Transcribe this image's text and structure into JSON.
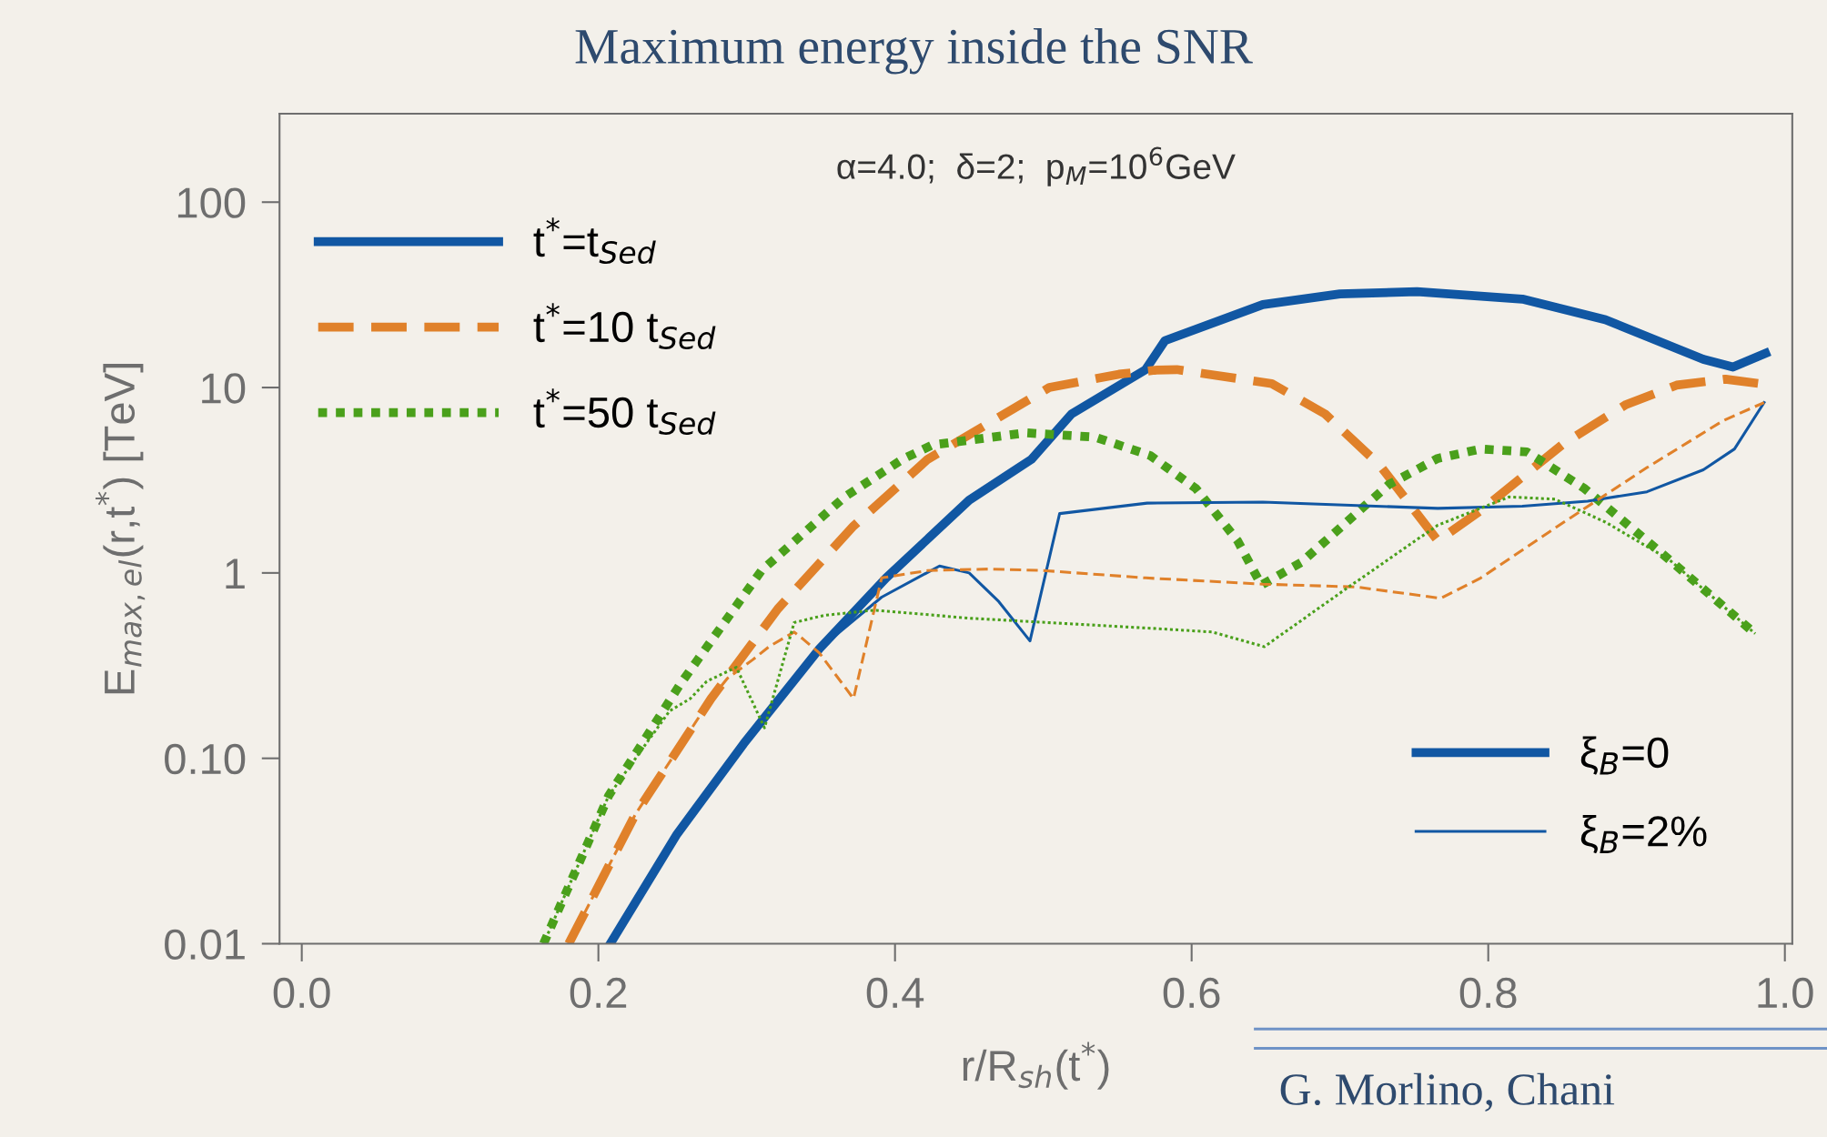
{
  "chart_data": {
    "type": "line",
    "title": "Maximum energy inside the SNR",
    "subtitle": "α=4.0;  δ=2;  p$_{M}$=10$^{6}$GeV",
    "xlabel": "r/R$_{sh}$(t$^{*}$)",
    "ylabel": "E$_{max,el}$(r,t$^{*}$) [TeV]",
    "log": "y",
    "xlim": [
      -0.015,
      1.005
    ],
    "ylim": [
      0.01,
      300
    ],
    "xticks": [
      {
        "value": 0.0,
        "label": "0.0"
      },
      {
        "value": 0.2,
        "label": "0.2"
      },
      {
        "value": 0.4,
        "label": "0.4"
      },
      {
        "value": 0.6,
        "label": "0.6"
      },
      {
        "value": 0.8,
        "label": "0.8"
      },
      {
        "value": 1.0,
        "label": "1.0"
      }
    ],
    "yticks": [
      0.01,
      {
        "value": 0.1,
        "label": "0.10"
      },
      1,
      10,
      100
    ],
    "grid": false,
    "legend": "top left",
    "series": [
      {
        "name": "t$^{*}$=t$_{Sed}$",
        "color": "#1157a3",
        "line_style": "solid",
        "x": [
          0.208,
          0.253,
          0.298,
          0.349,
          0.394,
          0.45,
          0.492,
          0.519,
          0.569,
          0.582,
          0.648,
          0.7,
          0.752,
          0.823,
          0.879,
          0.945,
          0.965,
          0.987
        ],
        "values": [
          0.01,
          0.039,
          0.12,
          0.39,
          0.94,
          2.47,
          4.1,
          7.2,
          12.5,
          17.9,
          28.0,
          32,
          32.9,
          30.0,
          23.2,
          14.2,
          12.9,
          15.3
        ]
      },
      {
        "name": "t$^{*}$=10 t$_{Sed}$",
        "color": "#e0812a",
        "line_style": "dashed",
        "x": [
          0.18,
          0.225,
          0.276,
          0.321,
          0.372,
          0.422,
          0.504,
          0.551,
          0.575,
          0.59,
          0.654,
          0.69,
          0.727,
          0.766,
          0.795,
          0.851,
          0.893,
          0.927,
          0.96,
          0.987
        ],
        "values": [
          0.01,
          0.05,
          0.21,
          0.64,
          1.79,
          4.1,
          10,
          11.8,
          12.4,
          12.5,
          10.5,
          7.2,
          3.8,
          1.49,
          2.17,
          5.0,
          8.1,
          10.3,
          11.1,
          10.4
        ]
      },
      {
        "name": "t$^{*}$=50 t$_{Sed}$",
        "color": "#4aa01b",
        "line_style": "dotted",
        "x": [
          0.163,
          0.207,
          0.255,
          0.31,
          0.366,
          0.405,
          0.425,
          0.488,
          0.535,
          0.572,
          0.603,
          0.631,
          0.647,
          0.674,
          0.733,
          0.766,
          0.795,
          0.826,
          0.865,
          0.922,
          0.98
        ],
        "values": [
          0.01,
          0.063,
          0.25,
          1.03,
          2.57,
          4.1,
          4.9,
          5.7,
          5.4,
          4.3,
          2.85,
          1.49,
          0.86,
          1.14,
          3.0,
          4.15,
          4.66,
          4.5,
          2.85,
          1.18,
          0.47
        ]
      },
      {
        "color": "#1157a3",
        "line_style": "solid",
        "x": [
          0.208,
          0.253,
          0.298,
          0.349,
          0.391,
          0.43,
          0.45,
          0.47,
          0.491,
          0.511,
          0.57,
          0.648,
          0.766,
          0.823,
          0.867,
          0.907,
          0.945,
          0.966,
          0.986
        ],
        "values": [
          0.01,
          0.039,
          0.12,
          0.39,
          0.74,
          1.09,
          1.0,
          0.7,
          0.43,
          2.09,
          2.38,
          2.41,
          2.23,
          2.29,
          2.44,
          2.74,
          3.6,
          4.66,
          8.3
        ]
      },
      {
        "color": "#e0812a",
        "line_style": "dashed",
        "x": [
          0.18,
          0.225,
          0.276,
          0.287,
          0.304,
          0.315,
          0.332,
          0.338,
          0.349,
          0.372,
          0.391,
          0.422,
          0.464,
          0.5,
          0.569,
          0.648,
          0.711,
          0.768,
          0.795,
          0.851,
          0.907,
          0.958,
          0.986
        ],
        "values": [
          0.01,
          0.05,
          0.21,
          0.27,
          0.34,
          0.4,
          0.48,
          0.44,
          0.37,
          0.21,
          0.94,
          1.03,
          1.05,
          1.03,
          0.94,
          0.87,
          0.84,
          0.73,
          0.94,
          1.88,
          3.7,
          6.6,
          8.3
        ]
      },
      {
        "color": "#4aa01b",
        "line_style": "dotted",
        "x": [
          0.163,
          0.207,
          0.248,
          0.262,
          0.273,
          0.293,
          0.312,
          0.332,
          0.352,
          0.386,
          0.45,
          0.578,
          0.614,
          0.649,
          0.704,
          0.766,
          0.814,
          0.845,
          0.879,
          0.922,
          0.98
        ],
        "values": [
          0.01,
          0.063,
          0.18,
          0.21,
          0.26,
          0.31,
          0.146,
          0.54,
          0.59,
          0.63,
          0.57,
          0.5,
          0.48,
          0.4,
          0.82,
          1.81,
          2.57,
          2.5,
          1.88,
          1.18,
          0.47
        ]
      }
    ],
    "annotations": [
      "ξ$_{B}$=0",
      "ξ$_{B}$=2%",
      "G. Morlino, Chani"
    ]
  }
}
